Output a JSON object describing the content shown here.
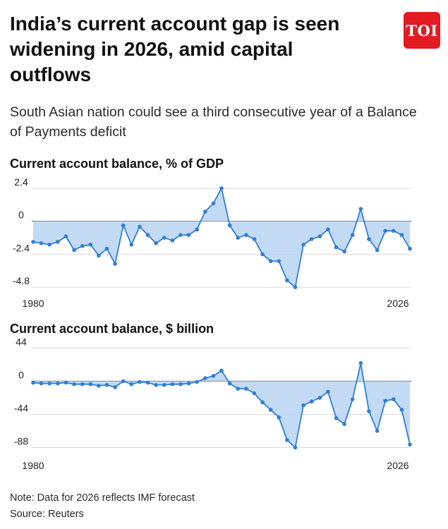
{
  "headline": "India’s current account gap is seen widening in 2026, amid capital outflows",
  "logo_text": "TOI",
  "subtitle": "South Asian nation could see a third consecutive year of a Balance of Payments deficit",
  "note": "Note: Data for 2026 reflects IMF forecast",
  "source": "Source: Reuters",
  "colors": {
    "line": "#2f7fd6",
    "fill": "#b9d3f3",
    "logo_bg": "#e21b22"
  },
  "chart_data": [
    {
      "type": "area",
      "title": "Current account balance, % of GDP",
      "x_start": 1980,
      "x_end": 2026,
      "x_tick_labels": [
        "1980",
        "2026"
      ],
      "y_tick_labels": [
        "2.4",
        "0",
        "-2.4",
        "-4.8"
      ],
      "y_ticks": [
        2.4,
        0,
        -2.4,
        -4.8
      ],
      "ylim": [
        -5.2,
        2.6
      ],
      "values": [
        -1.5,
        -1.6,
        -1.7,
        -1.5,
        -1.1,
        -2.1,
        -1.8,
        -1.7,
        -2.5,
        -2.0,
        -3.1,
        -0.3,
        -1.7,
        -0.4,
        -1.0,
        -1.6,
        -1.2,
        -1.4,
        -1.0,
        -1.0,
        -0.6,
        0.7,
        1.3,
        2.4,
        -0.3,
        -1.2,
        -1.0,
        -1.3,
        -2.4,
        -2.9,
        -2.9,
        -4.3,
        -4.8,
        -1.7,
        -1.3,
        -1.1,
        -0.6,
        -1.9,
        -2.2,
        -1.0,
        0.9,
        -1.3,
        -2.1,
        -0.7,
        -0.7,
        -1.0,
        -2.0
      ]
    },
    {
      "type": "area",
      "title": "Current account balance, $ billion",
      "x_start": 1980,
      "x_end": 2026,
      "x_tick_labels": [
        "1980",
        "2026"
      ],
      "y_tick_labels": [
        "44",
        "0",
        "-44",
        "-88"
      ],
      "y_ticks": [
        44,
        0,
        -44,
        -88
      ],
      "ylim": [
        -96,
        50
      ],
      "values": [
        -2,
        -3,
        -3,
        -3,
        -2,
        -4,
        -4,
        -4,
        -6,
        -5,
        -8,
        0,
        -4,
        -1,
        -2,
        -5,
        -5,
        -4,
        -4,
        -3,
        -1,
        4,
        7,
        14,
        -3,
        -10,
        -10,
        -16,
        -28,
        -38,
        -48,
        -78,
        -88,
        -32,
        -27,
        -22,
        -14,
        -49,
        -57,
        -24,
        24,
        -40,
        -66,
        -26,
        -24,
        -38,
        -84
      ]
    }
  ]
}
